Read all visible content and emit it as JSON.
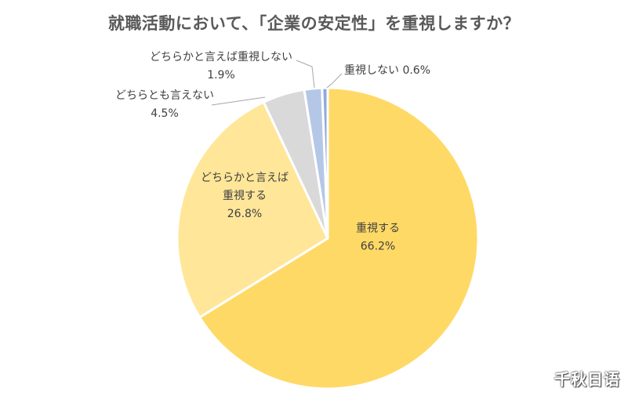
{
  "chart_data": {
    "type": "pie",
    "title": "就職活動において、「企業の安定性」を重視しますか？",
    "slices": [
      {
        "label": [
          "重視する"
        ],
        "value": 66.2,
        "value_text": "66.2%",
        "color": "#FFD966"
      },
      {
        "label": [
          "どちらかと言えば",
          "重視する"
        ],
        "value": 26.8,
        "value_text": "26.8%",
        "color": "#FFE699"
      },
      {
        "label": [
          "どちらとも言えない"
        ],
        "value": 4.5,
        "value_text": "4.5%",
        "color": "#D9D9D9"
      },
      {
        "label": [
          "どちらかと言えば重視しない"
        ],
        "value": 1.9,
        "value_text": "1.9%",
        "color": "#B4C7E7"
      },
      {
        "label": [
          "重視しない"
        ],
        "value": 0.6,
        "value_text": "0.6%",
        "color": "#8FAADC"
      }
    ]
  },
  "watermark": "千秋日语"
}
